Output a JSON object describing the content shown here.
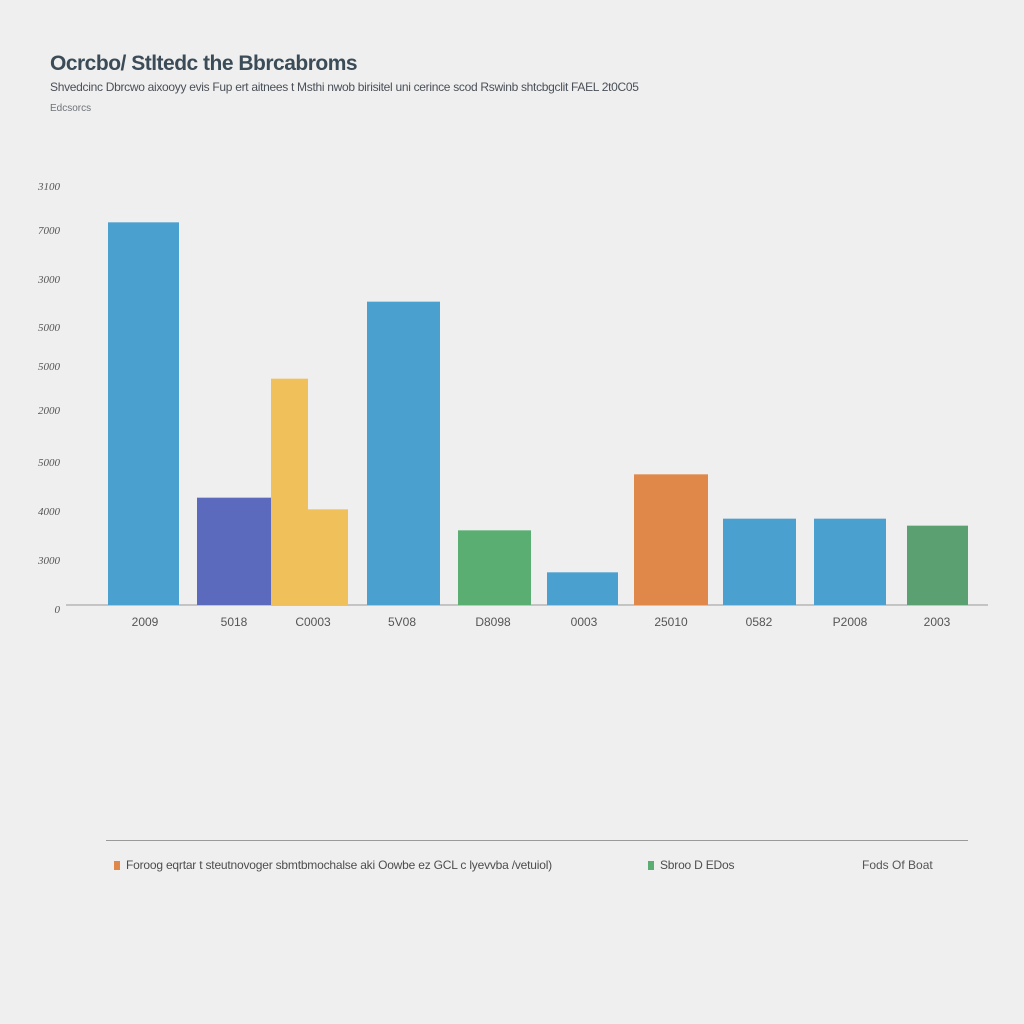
{
  "chart_data": {
    "type": "bar",
    "title": "Ocrcbo/ Stltedc the Bbrcabroms",
    "subtitle": "Shvedcinc Dbrcwo aixooyy evis Fup ert aitnees t Msthi nwob birisitel uni cerince scod Rswinb shtcbgclit FAEL 2t0C05",
    "note": "Edcsorcs",
    "ylabel_ticks": [
      "0",
      "3000",
      "4000",
      "5000",
      "2000",
      "5000",
      "5000",
      "3000",
      "7000",
      "3100"
    ],
    "categories": [
      "2009",
      "5018",
      "C0003",
      "5V08",
      "D8098",
      "0003",
      "25010",
      "0582",
      "P2008",
      "2003"
    ],
    "ylim": [
      0,
      9
    ],
    "series": [
      {
        "values": [
          8.2,
          2.3,
          null,
          6.5,
          1.6,
          0.7,
          2.8,
          1.85,
          1.85,
          1.7
        ],
        "colors": [
          "#4aa0cf",
          "#5b6abc",
          null,
          "#4aa0cf",
          "#5aae72",
          "#4aa0cf",
          "#e0874a",
          "#4aa0cf",
          "#4aa0cf",
          "#5aa070"
        ]
      },
      {
        "values": [
          null,
          null,
          4.85,
          null,
          null,
          null,
          null,
          null,
          null,
          null
        ],
        "colors": [
          null,
          null,
          "#f0c15a",
          null,
          null,
          null,
          null,
          null,
          null,
          null
        ]
      },
      {
        "values": [
          null,
          null,
          2.05,
          null,
          null,
          null,
          null,
          null,
          null,
          null
        ],
        "colors": [
          null,
          null,
          "#f0c15a",
          null,
          null,
          null,
          null,
          null,
          null,
          null
        ]
      }
    ],
    "legend": [
      {
        "label": "Foroog eqrtar t steutnovoger sbmtbmochalse aki Oowbe ez GCL c lyevvba /vetuiol)",
        "color": "#e0874a"
      },
      {
        "label": "Sbroo D EDos",
        "color": "#5aae72"
      }
    ],
    "source": "Fods Of Boat",
    "grid": false
  }
}
